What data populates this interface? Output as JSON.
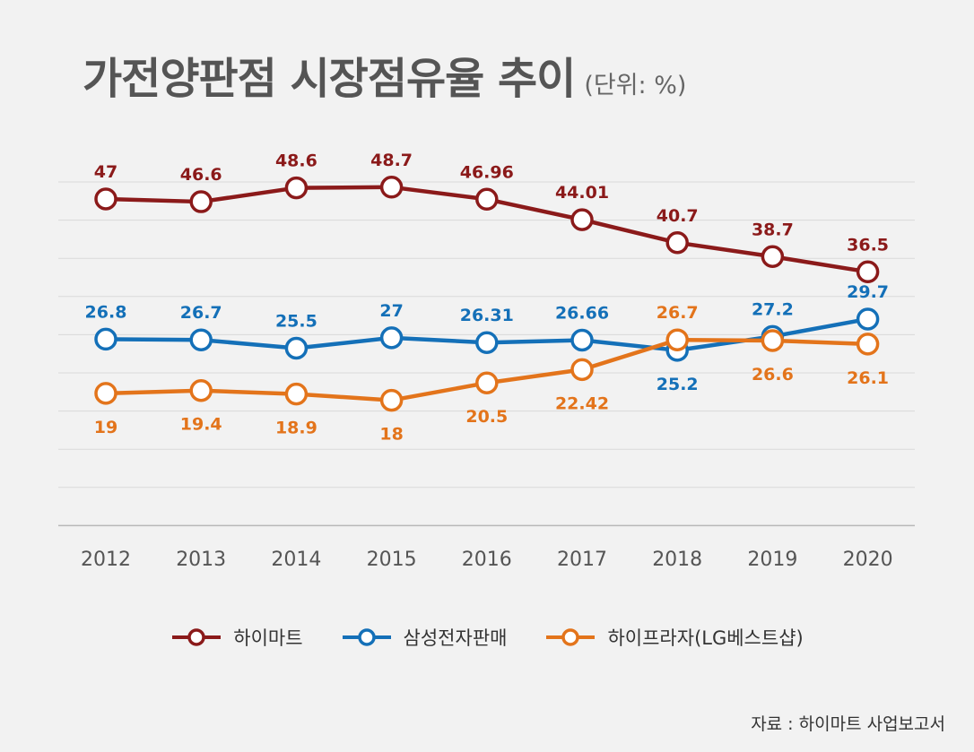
{
  "chart_data": {
    "type": "line",
    "title": "가전양판점 시장점유율 추이",
    "unit_label": "(단위: %)",
    "categories": [
      "2012",
      "2013",
      "2014",
      "2015",
      "2016",
      "2017",
      "2018",
      "2019",
      "2020"
    ],
    "ylim": [
      0,
      55
    ],
    "grid": true,
    "legend_position": "bottom",
    "series": [
      {
        "name": "하이마트",
        "color": "#8b1a1a",
        "values": [
          47,
          46.6,
          48.6,
          48.7,
          46.96,
          44.01,
          40.7,
          38.7,
          36.5
        ],
        "labels": [
          "47",
          "46.6",
          "48.6",
          "48.7",
          "46.96",
          "44.01",
          "40.7",
          "38.7",
          "36.5"
        ],
        "label_side": [
          "above",
          "above",
          "above",
          "above",
          "above",
          "above",
          "above",
          "above",
          "above"
        ]
      },
      {
        "name": "삼성전자판매",
        "color": "#1470b8",
        "values": [
          26.8,
          26.7,
          25.5,
          27,
          26.31,
          26.66,
          25.2,
          27.2,
          29.7
        ],
        "labels": [
          "26.8",
          "26.7",
          "25.5",
          "27",
          "26.31",
          "26.66",
          "25.2",
          "27.2",
          "29.7"
        ],
        "label_side": [
          "above",
          "above",
          "above",
          "above",
          "above",
          "above",
          "below",
          "above",
          "above"
        ]
      },
      {
        "name": "하이프라자(LG베스트샵)",
        "color": "#e3741b",
        "values": [
          19,
          19.4,
          18.9,
          18,
          20.5,
          22.42,
          26.7,
          26.6,
          26.1
        ],
        "labels": [
          "19",
          "19.4",
          "18.9",
          "18",
          "20.5",
          "22.42",
          "26.7",
          "26.6",
          "26.1"
        ],
        "label_side": [
          "below",
          "below",
          "below",
          "below",
          "below",
          "below",
          "above",
          "below",
          "below"
        ]
      }
    ]
  },
  "source": "자료 : 하이마트 사업보고서"
}
